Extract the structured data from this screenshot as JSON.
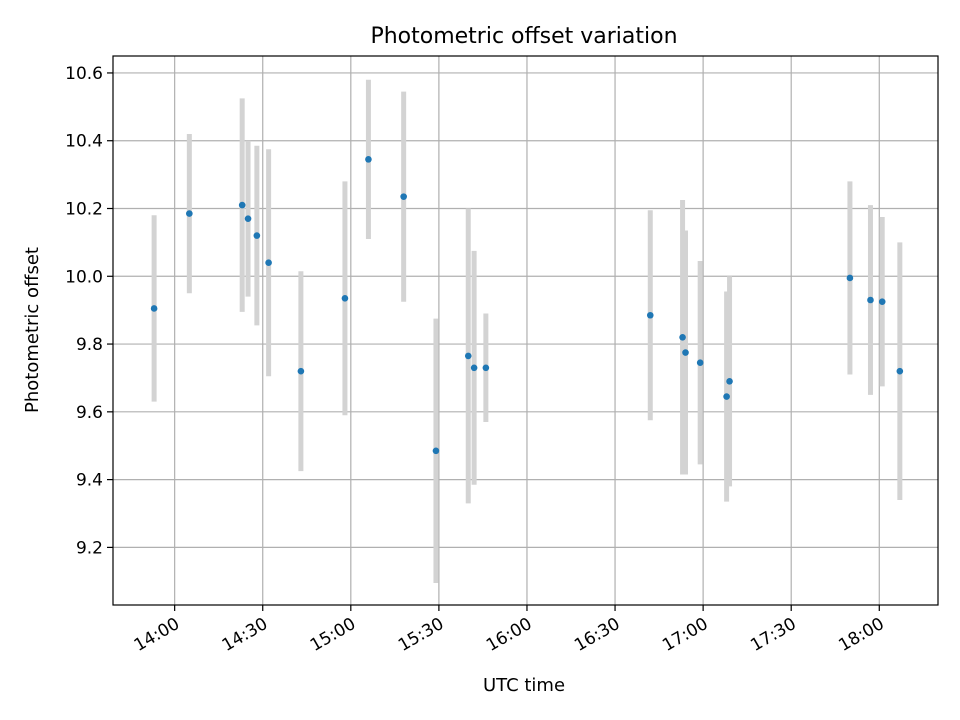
{
  "chart_data": {
    "type": "scatter",
    "title": "Photometric offset variation",
    "xlabel": "UTC time",
    "ylabel": "Photometric offset",
    "x_tick_labels": [
      "14:00",
      "14:30",
      "15:00",
      "15:30",
      "16:00",
      "16:30",
      "17:00",
      "17:30",
      "18:00"
    ],
    "y_tick_labels": [
      "9.2",
      "9.4",
      "9.6",
      "9.8",
      "10.0",
      "10.2",
      "10.4",
      "10.6"
    ],
    "xlim": [
      "13:39",
      "18:20"
    ],
    "ylim": [
      9.03,
      10.65
    ],
    "grid": true,
    "error_bars": true,
    "colors": {
      "point": "#1f77b4",
      "error_bar": "#d3d3d3",
      "grid": "#b0b0b0",
      "axes": "#000000"
    },
    "series": [
      {
        "points": [
          {
            "x": "13:53",
            "y": 9.905,
            "err": 0.275
          },
          {
            "x": "14:05",
            "y": 10.185,
            "err": 0.235
          },
          {
            "x": "14:23",
            "y": 10.21,
            "err": 0.315
          },
          {
            "x": "14:25",
            "y": 10.17,
            "err": 0.23
          },
          {
            "x": "14:28",
            "y": 10.12,
            "err": 0.265
          },
          {
            "x": "14:32",
            "y": 10.04,
            "err": 0.335
          },
          {
            "x": "14:43",
            "y": 9.72,
            "err": 0.295
          },
          {
            "x": "14:58",
            "y": 9.935,
            "err": 0.345
          },
          {
            "x": "15:06",
            "y": 10.345,
            "err": 0.235
          },
          {
            "x": "15:18",
            "y": 10.235,
            "err": 0.31
          },
          {
            "x": "15:29",
            "y": 9.485,
            "err": 0.39
          },
          {
            "x": "15:40",
            "y": 9.765,
            "err": 0.435
          },
          {
            "x": "15:42",
            "y": 9.73,
            "err": 0.345
          },
          {
            "x": "15:46",
            "y": 9.73,
            "err": 0.16
          },
          {
            "x": "16:42",
            "y": 9.885,
            "err": 0.31
          },
          {
            "x": "16:53",
            "y": 9.82,
            "err": 0.405
          },
          {
            "x": "16:54",
            "y": 9.775,
            "err": 0.36
          },
          {
            "x": "16:59",
            "y": 9.745,
            "err": 0.3
          },
          {
            "x": "17:08",
            "y": 9.645,
            "err": 0.31
          },
          {
            "x": "17:09",
            "y": 9.69,
            "err": 0.31
          },
          {
            "x": "17:50",
            "y": 9.995,
            "err": 0.285
          },
          {
            "x": "17:57",
            "y": 9.93,
            "err": 0.28
          },
          {
            "x": "18:01",
            "y": 9.925,
            "err": 0.25
          },
          {
            "x": "18:07",
            "y": 9.72,
            "err": 0.38
          }
        ]
      }
    ]
  }
}
